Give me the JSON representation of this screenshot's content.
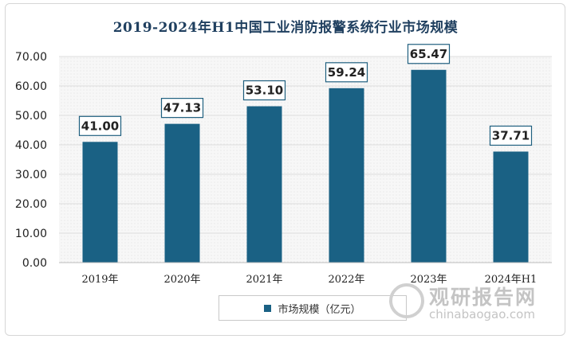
{
  "chart_data": {
    "type": "bar",
    "title": "2019-2024年H1中国工业消防报警系统行业市场规模",
    "categories": [
      "2019年",
      "2020年",
      "2021年",
      "2022年",
      "2023年",
      "2024年H1"
    ],
    "series": [
      {
        "name": "市场规模（亿元）",
        "values": [
          41.0,
          47.13,
          53.1,
          59.24,
          65.47,
          37.71
        ]
      }
    ],
    "value_labels": [
      "41.00",
      "47.13",
      "53.10",
      "59.24",
      "65.47",
      "37.71"
    ],
    "ylim": [
      0,
      70
    ],
    "y_ticks": [
      "0.00",
      "10.00",
      "20.00",
      "30.00",
      "40.00",
      "50.00",
      "60.00",
      "70.00"
    ],
    "xlabel": "",
    "ylabel": "",
    "grid": true,
    "legend": "bottom-center",
    "bar_color": "#1a6184"
  },
  "watermark": {
    "name": "观研报告网",
    "url": "chinabaogao.com"
  }
}
